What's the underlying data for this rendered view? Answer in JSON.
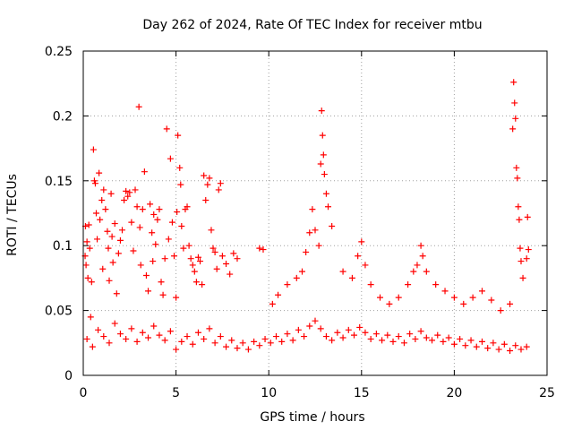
{
  "chart_data": {
    "type": "scatter",
    "title": "Day 262 of 2024, Rate Of TEC Index for receiver mtbu",
    "xlabel": "GPS time / hours",
    "ylabel": "ROTI / TECUs",
    "xlim": [
      0,
      25
    ],
    "ylim": [
      0,
      0.25
    ],
    "xticks": [
      0,
      5,
      10,
      15,
      20,
      25
    ],
    "xtick_labels": [
      "0",
      "5",
      "10",
      "15",
      "20",
      "25"
    ],
    "yticks": [
      0,
      0.05,
      0.1,
      0.15,
      0.2,
      0.25
    ],
    "ytick_labels": [
      "0",
      "0.05",
      "0.1",
      "0.15",
      "0.2",
      "0.25"
    ],
    "grid": true,
    "marker": "plus",
    "color": "#ff0000",
    "series": [
      {
        "name": "ROTI",
        "points": [
          [
            0.1,
            0.092
          ],
          [
            0.12,
            0.115
          ],
          [
            0.15,
            0.085
          ],
          [
            0.2,
            0.103
          ],
          [
            0.25,
            0.075
          ],
          [
            0.3,
            0.116
          ],
          [
            0.35,
            0.098
          ],
          [
            0.4,
            0.045
          ],
          [
            0.45,
            0.072
          ],
          [
            0.55,
            0.174
          ],
          [
            0.6,
            0.15
          ],
          [
            0.65,
            0.148
          ],
          [
            0.7,
            0.125
          ],
          [
            0.75,
            0.105
          ],
          [
            0.85,
            0.156
          ],
          [
            0.9,
            0.12
          ],
          [
            1.0,
            0.135
          ],
          [
            1.05,
            0.082
          ],
          [
            1.1,
            0.143
          ],
          [
            1.2,
            0.128
          ],
          [
            1.3,
            0.111
          ],
          [
            1.35,
            0.098
          ],
          [
            1.4,
            0.073
          ],
          [
            1.5,
            0.14
          ],
          [
            1.55,
            0.107
          ],
          [
            1.6,
            0.087
          ],
          [
            1.7,
            0.117
          ],
          [
            1.8,
            0.063
          ],
          [
            1.9,
            0.094
          ],
          [
            2.0,
            0.104
          ],
          [
            2.1,
            0.112
          ],
          [
            2.2,
            0.135
          ],
          [
            2.3,
            0.142
          ],
          [
            2.4,
            0.138
          ],
          [
            2.5,
            0.141
          ],
          [
            2.6,
            0.118
          ],
          [
            2.7,
            0.096
          ],
          [
            2.8,
            0.143
          ],
          [
            2.9,
            0.13
          ],
          [
            3.0,
            0.207
          ],
          [
            3.05,
            0.114
          ],
          [
            3.1,
            0.085
          ],
          [
            3.2,
            0.128
          ],
          [
            3.3,
            0.157
          ],
          [
            3.4,
            0.077
          ],
          [
            3.5,
            0.065
          ],
          [
            3.6,
            0.132
          ],
          [
            3.7,
            0.11
          ],
          [
            3.75,
            0.088
          ],
          [
            3.8,
            0.124
          ],
          [
            3.9,
            0.101
          ],
          [
            4.0,
            0.12
          ],
          [
            4.1,
            0.128
          ],
          [
            4.2,
            0.072
          ],
          [
            4.3,
            0.062
          ],
          [
            4.4,
            0.09
          ],
          [
            4.5,
            0.19
          ],
          [
            4.6,
            0.105
          ],
          [
            4.7,
            0.167
          ],
          [
            4.8,
            0.118
          ],
          [
            4.9,
            0.092
          ],
          [
            5.0,
            0.06
          ],
          [
            5.05,
            0.126
          ],
          [
            5.1,
            0.185
          ],
          [
            5.2,
            0.16
          ],
          [
            5.25,
            0.147
          ],
          [
            5.3,
            0.115
          ],
          [
            5.4,
            0.098
          ],
          [
            5.5,
            0.128
          ],
          [
            5.6,
            0.13
          ],
          [
            5.7,
            0.1
          ],
          [
            5.8,
            0.09
          ],
          [
            5.9,
            0.085
          ],
          [
            6.0,
            0.08
          ],
          [
            6.1,
            0.072
          ],
          [
            6.2,
            0.091
          ],
          [
            6.3,
            0.088
          ],
          [
            6.4,
            0.07
          ],
          [
            6.5,
            0.154
          ],
          [
            6.6,
            0.135
          ],
          [
            6.7,
            0.147
          ],
          [
            6.8,
            0.152
          ],
          [
            6.9,
            0.112
          ],
          [
            7.0,
            0.098
          ],
          [
            7.1,
            0.095
          ],
          [
            7.2,
            0.082
          ],
          [
            7.3,
            0.143
          ],
          [
            7.4,
            0.148
          ],
          [
            7.5,
            0.092
          ],
          [
            7.7,
            0.086
          ],
          [
            7.9,
            0.078
          ],
          [
            8.1,
            0.094
          ],
          [
            8.3,
            0.09
          ],
          [
            9.5,
            0.098
          ],
          [
            9.7,
            0.097
          ],
          [
            10.2,
            0.055
          ],
          [
            10.5,
            0.062
          ],
          [
            11.0,
            0.07
          ],
          [
            11.5,
            0.075
          ],
          [
            11.8,
            0.08
          ],
          [
            12.0,
            0.095
          ],
          [
            12.2,
            0.11
          ],
          [
            12.35,
            0.128
          ],
          [
            12.5,
            0.112
          ],
          [
            12.7,
            0.1
          ],
          [
            12.8,
            0.163
          ],
          [
            12.85,
            0.204
          ],
          [
            12.9,
            0.185
          ],
          [
            12.95,
            0.17
          ],
          [
            13.0,
            0.155
          ],
          [
            13.1,
            0.14
          ],
          [
            13.2,
            0.13
          ],
          [
            13.4,
            0.115
          ],
          [
            14.0,
            0.08
          ],
          [
            14.5,
            0.075
          ],
          [
            14.8,
            0.092
          ],
          [
            15.0,
            0.103
          ],
          [
            15.2,
            0.085
          ],
          [
            15.5,
            0.07
          ],
          [
            16.0,
            0.06
          ],
          [
            16.5,
            0.055
          ],
          [
            17.0,
            0.06
          ],
          [
            17.5,
            0.07
          ],
          [
            17.8,
            0.08
          ],
          [
            18.0,
            0.085
          ],
          [
            18.2,
            0.1
          ],
          [
            18.3,
            0.092
          ],
          [
            18.5,
            0.08
          ],
          [
            19.0,
            0.07
          ],
          [
            19.5,
            0.065
          ],
          [
            20.0,
            0.06
          ],
          [
            20.5,
            0.055
          ],
          [
            21.0,
            0.06
          ],
          [
            21.5,
            0.065
          ],
          [
            22.0,
            0.058
          ],
          [
            22.5,
            0.05
          ],
          [
            23.0,
            0.055
          ],
          [
            23.15,
            0.19
          ],
          [
            23.2,
            0.226
          ],
          [
            23.25,
            0.21
          ],
          [
            23.3,
            0.198
          ],
          [
            23.35,
            0.16
          ],
          [
            23.4,
            0.152
          ],
          [
            23.45,
            0.13
          ],
          [
            23.5,
            0.12
          ],
          [
            23.55,
            0.098
          ],
          [
            23.6,
            0.088
          ],
          [
            23.7,
            0.075
          ],
          [
            23.9,
            0.09
          ],
          [
            23.95,
            0.122
          ],
          [
            24.0,
            0.097
          ],
          [
            0.2,
            0.028
          ],
          [
            0.5,
            0.022
          ],
          [
            0.8,
            0.035
          ],
          [
            1.1,
            0.03
          ],
          [
            1.4,
            0.025
          ],
          [
            1.7,
            0.04
          ],
          [
            2.0,
            0.032
          ],
          [
            2.3,
            0.028
          ],
          [
            2.6,
            0.036
          ],
          [
            2.9,
            0.026
          ],
          [
            3.2,
            0.033
          ],
          [
            3.5,
            0.029
          ],
          [
            3.8,
            0.038
          ],
          [
            4.1,
            0.031
          ],
          [
            4.4,
            0.027
          ],
          [
            4.7,
            0.034
          ],
          [
            5.0,
            0.02
          ],
          [
            5.3,
            0.026
          ],
          [
            5.6,
            0.03
          ],
          [
            5.9,
            0.024
          ],
          [
            6.2,
            0.033
          ],
          [
            6.5,
            0.028
          ],
          [
            6.8,
            0.036
          ],
          [
            7.1,
            0.025
          ],
          [
            7.4,
            0.03
          ],
          [
            7.7,
            0.022
          ],
          [
            8.0,
            0.027
          ],
          [
            8.3,
            0.021
          ],
          [
            8.6,
            0.025
          ],
          [
            8.9,
            0.02
          ],
          [
            9.2,
            0.026
          ],
          [
            9.5,
            0.023
          ],
          [
            9.8,
            0.028
          ],
          [
            10.1,
            0.025
          ],
          [
            10.4,
            0.03
          ],
          [
            10.7,
            0.026
          ],
          [
            11.0,
            0.032
          ],
          [
            11.3,
            0.027
          ],
          [
            11.6,
            0.035
          ],
          [
            11.9,
            0.03
          ],
          [
            12.2,
            0.038
          ],
          [
            12.5,
            0.042
          ],
          [
            12.8,
            0.036
          ],
          [
            13.1,
            0.03
          ],
          [
            13.4,
            0.027
          ],
          [
            13.7,
            0.033
          ],
          [
            14.0,
            0.029
          ],
          [
            14.3,
            0.035
          ],
          [
            14.6,
            0.031
          ],
          [
            14.9,
            0.037
          ],
          [
            15.2,
            0.033
          ],
          [
            15.5,
            0.028
          ],
          [
            15.8,
            0.032
          ],
          [
            16.1,
            0.027
          ],
          [
            16.4,
            0.031
          ],
          [
            16.7,
            0.026
          ],
          [
            17.0,
            0.03
          ],
          [
            17.3,
            0.025
          ],
          [
            17.6,
            0.032
          ],
          [
            17.9,
            0.028
          ],
          [
            18.2,
            0.034
          ],
          [
            18.5,
            0.029
          ],
          [
            18.8,
            0.027
          ],
          [
            19.1,
            0.031
          ],
          [
            19.4,
            0.026
          ],
          [
            19.7,
            0.029
          ],
          [
            20.0,
            0.024
          ],
          [
            20.3,
            0.028
          ],
          [
            20.6,
            0.023
          ],
          [
            20.9,
            0.027
          ],
          [
            21.2,
            0.022
          ],
          [
            21.5,
            0.026
          ],
          [
            21.8,
            0.021
          ],
          [
            22.1,
            0.025
          ],
          [
            22.4,
            0.02
          ],
          [
            22.7,
            0.024
          ],
          [
            23.0,
            0.019
          ],
          [
            23.3,
            0.023
          ],
          [
            23.6,
            0.02
          ],
          [
            23.9,
            0.022
          ]
        ]
      }
    ]
  }
}
